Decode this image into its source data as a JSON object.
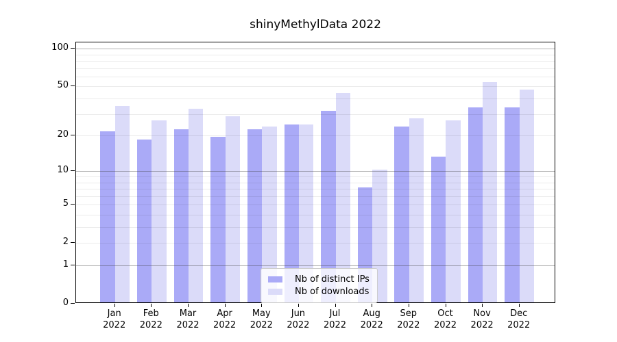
{
  "chart_data": {
    "type": "bar",
    "title": "shinyMethylData 2022",
    "year": "2022",
    "categories": [
      "Jan",
      "Feb",
      "Mar",
      "Apr",
      "May",
      "Jun",
      "Jul",
      "Aug",
      "Sep",
      "Oct",
      "Nov",
      "Dec"
    ],
    "series": [
      {
        "name": "Nb of distinct IPs",
        "color": "#AAAAF7",
        "values": [
          21,
          18,
          22,
          19,
          22,
          24,
          31,
          7,
          23,
          13,
          33,
          33
        ]
      },
      {
        "name": "Nb of downloads",
        "color": "#DBDBF9",
        "values": [
          34,
          26,
          32,
          28,
          23,
          24,
          43,
          10,
          27,
          26,
          53,
          46
        ]
      }
    ],
    "y_axis": {
      "scale": "log1p",
      "ylim": [
        0,
        112
      ],
      "tick_values": [
        100,
        50,
        20,
        10,
        5,
        2,
        1,
        0
      ],
      "tick_labels": [
        "100",
        "50",
        "20",
        "10",
        "5",
        "2",
        "1",
        "0"
      ],
      "major_grid_values": [
        1,
        10,
        100
      ],
      "minor_grid_values": [
        2,
        3,
        4,
        5,
        6,
        7,
        8,
        9,
        20,
        30,
        40,
        50,
        60,
        70,
        80,
        90
      ]
    },
    "grid": true,
    "legend_position": "bottom-center"
  },
  "colors": {
    "background": "#ffffff",
    "frame": "#000000",
    "grid_major": "rgba(60,60,60,0.40)",
    "grid_minor": "rgba(0,0,0,0.08)",
    "legend_border": "#cccccc"
  }
}
